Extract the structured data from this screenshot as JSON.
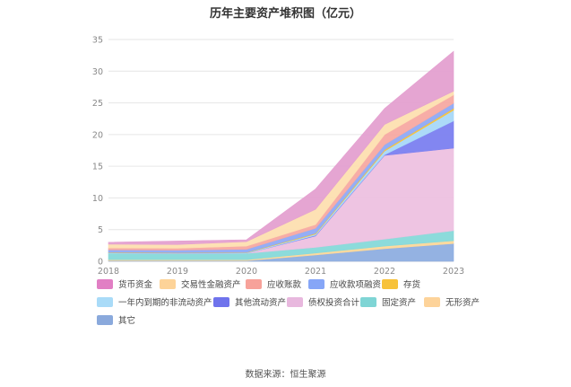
{
  "chart_data": {
    "type": "area",
    "title": "历年主要资产堆积图（亿元）",
    "categories": [
      "2018",
      "2019",
      "2020",
      "2021",
      "2022",
      "2023"
    ],
    "ylim": [
      0,
      35
    ],
    "yticks": [
      "0",
      "5",
      "10",
      "15",
      "20",
      "25",
      "30",
      "35"
    ],
    "stacked": true,
    "grid": true,
    "legend_position": "bottom-left",
    "series": [
      {
        "name": "其它",
        "color": "#8eaee0",
        "values": [
          0.1,
          0.1,
          0.1,
          1.0,
          2.0,
          2.8
        ]
      },
      {
        "name": "无形资产",
        "color": "#fdd89a",
        "values": [
          0.15,
          0.15,
          0.15,
          0.3,
          0.4,
          0.45
        ]
      },
      {
        "name": "固定资产",
        "color": "#86d9d9",
        "values": [
          1.0,
          0.95,
          1.0,
          0.9,
          1.1,
          1.6
        ]
      },
      {
        "name": "债权投资合计",
        "color": "#edc1e0",
        "values": [
          0,
          0,
          0,
          1.8,
          13.2,
          13.0
        ]
      },
      {
        "name": "其他流动资产",
        "color": "#7b7ff0",
        "values": [
          0,
          0,
          0,
          0.1,
          0.1,
          4.3
        ]
      },
      {
        "name": "一年内到期的非流动资产",
        "color": "#a8d8f8",
        "values": [
          0.1,
          0.1,
          0.1,
          0.2,
          0.6,
          1.7
        ]
      },
      {
        "name": "存货",
        "color": "#f7c23a",
        "values": [
          0.05,
          0.05,
          0.05,
          0.1,
          0.2,
          0.3
        ]
      },
      {
        "name": "应收款项融资",
        "color": "#8faaf5",
        "values": [
          0.4,
          0.4,
          0.5,
          0.8,
          0.8,
          0.8
        ]
      },
      {
        "name": "应收账款",
        "color": "#f7a9a2",
        "values": [
          0.3,
          0.3,
          0.5,
          0.6,
          1.6,
          1.3
        ]
      },
      {
        "name": "交易性金融资产",
        "color": "#fddfb0",
        "values": [
          0.6,
          0.6,
          0.7,
          2.4,
          1.6,
          0.6
        ]
      },
      {
        "name": "货币资金",
        "color": "#e4a0d0",
        "values": [
          0.3,
          0.55,
          0.3,
          3.2,
          2.5,
          6.3
        ]
      }
    ]
  },
  "legend": [
    {
      "label": "货币资金",
      "color": "#e17fc4"
    },
    {
      "label": "交易性金融资产",
      "color": "#fdd398"
    },
    {
      "label": "应收账款",
      "color": "#f7a29a"
    },
    {
      "label": "应收款项融资",
      "color": "#86a6f7"
    },
    {
      "label": "存货",
      "color": "#f7c23a"
    },
    {
      "label": "一年内到期的非流动资产",
      "color": "#a9dbf8"
    },
    {
      "label": "其他流动资产",
      "color": "#6f73ec"
    },
    {
      "label": "债权投资合计",
      "color": "#e8b8de"
    },
    {
      "label": "固定资产",
      "color": "#7fd5d5"
    },
    {
      "label": "无形资产",
      "color": "#fdd39a"
    },
    {
      "label": "其它",
      "color": "#8aa9dc"
    }
  ],
  "source": "数据来源：恒生聚源"
}
